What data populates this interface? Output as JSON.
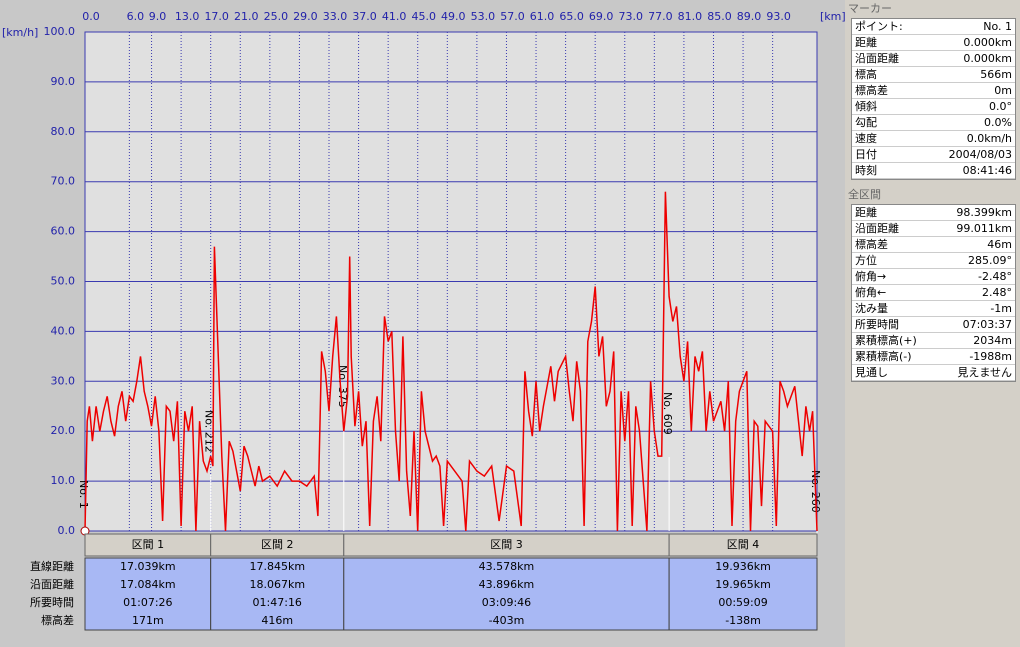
{
  "chart_data": {
    "type": "line",
    "y_unit": "[km/h]",
    "x_unit": "[km]",
    "color": "#ee0000",
    "grid": true,
    "xlim": [
      0,
      99
    ],
    "ylim": [
      0,
      100
    ],
    "xticks": [
      {
        "value": 0,
        "label": "0.0"
      },
      {
        "value": 6,
        "label": "6.0"
      },
      {
        "value": 9,
        "label": "9.0"
      },
      {
        "value": 13,
        "label": "13.0"
      },
      {
        "value": 17,
        "label": "17.0"
      },
      {
        "value": 21,
        "label": "21.0"
      },
      {
        "value": 25,
        "label": "25.0"
      },
      {
        "value": 29,
        "label": "29.0"
      },
      {
        "value": 33,
        "label": "33.0"
      },
      {
        "value": 37,
        "label": "37.0"
      },
      {
        "value": 41,
        "label": "41.0"
      },
      {
        "value": 45,
        "label": "45.0"
      },
      {
        "value": 49,
        "label": "49.0"
      },
      {
        "value": 53,
        "label": "53.0"
      },
      {
        "value": 57,
        "label": "57.0"
      },
      {
        "value": 61,
        "label": "61.0"
      },
      {
        "value": 65,
        "label": "65.0"
      },
      {
        "value": 69,
        "label": "69.0"
      },
      {
        "value": 73,
        "label": "73.0"
      },
      {
        "value": 77,
        "label": "77.0"
      },
      {
        "value": 81,
        "label": "81.0"
      },
      {
        "value": 85,
        "label": "85.0"
      },
      {
        "value": 89,
        "label": "89.0"
      },
      {
        "value": 93,
        "label": "93.0"
      }
    ],
    "yticks": [
      {
        "value": 0,
        "label": "0.0"
      },
      {
        "value": 10,
        "label": "10.0"
      },
      {
        "value": 20,
        "label": "20.0"
      },
      {
        "value": 30,
        "label": "30.0"
      },
      {
        "value": 40,
        "label": "40.0"
      },
      {
        "value": 50,
        "label": "50.0"
      },
      {
        "value": 60,
        "label": "60.0"
      },
      {
        "value": 70,
        "label": "70.0"
      },
      {
        "value": 80,
        "label": "80.0"
      },
      {
        "value": 90,
        "label": "90.0"
      },
      {
        "value": 100,
        "label": "100.0"
      }
    ],
    "x": [
      0,
      0.3,
      0.6,
      1,
      1.5,
      2,
      2.5,
      3,
      3.5,
      4,
      4.5,
      5,
      5.5,
      6,
      6.5,
      7,
      7.5,
      8,
      8.5,
      9,
      9.5,
      10,
      10.5,
      11,
      11.5,
      12,
      12.5,
      13,
      13.5,
      14,
      14.5,
      15,
      15.5,
      16,
      16.5,
      17,
      17.3,
      17.5,
      18,
      18.5,
      19,
      19.5,
      20,
      21,
      21.5,
      22,
      23,
      23.5,
      24,
      25,
      26,
      27,
      28,
      29,
      30,
      31,
      31.5,
      32,
      32.5,
      33,
      33.5,
      34,
      34.5,
      35,
      35.5,
      35.8,
      36,
      36.5,
      37,
      37.5,
      38,
      38.5,
      39,
      39.5,
      40,
      40.5,
      41,
      41.5,
      42,
      42.5,
      43,
      43.5,
      44,
      44.5,
      45,
      45.5,
      46,
      47,
      47.5,
      48,
      48.5,
      49,
      50,
      51,
      51.5,
      52,
      53,
      54,
      55,
      56,
      57,
      58,
      59,
      59.5,
      60,
      60.5,
      61,
      61.5,
      62,
      63,
      63.5,
      64,
      65,
      65.5,
      66,
      66.5,
      67,
      67.5,
      68,
      68.5,
      69,
      69.5,
      70,
      70.5,
      71,
      71.5,
      72,
      72.5,
      73,
      73.5,
      74,
      74.5,
      75,
      75.5,
      76,
      76.5,
      77,
      77.5,
      78,
      78.5,
      79,
      79.5,
      80,
      80.5,
      81,
      81.5,
      82,
      82.5,
      83,
      83.5,
      84,
      84.5,
      85,
      86,
      86.5,
      87,
      87.5,
      88,
      88.5,
      89,
      89.5,
      90,
      90.5,
      91,
      91.5,
      92,
      93,
      93.5,
      94,
      94.5,
      95,
      96,
      96.5,
      97,
      97.5,
      98,
      98.4,
      99
    ],
    "values": [
      0,
      22,
      25,
      18,
      25,
      20,
      24,
      27,
      22,
      19,
      25,
      28,
      22,
      27,
      26,
      30,
      35,
      28,
      25,
      21,
      27,
      20,
      2,
      25,
      24,
      18,
      26,
      1,
      24,
      20,
      25,
      0,
      22,
      14,
      12,
      15,
      13,
      57,
      36,
      15,
      0,
      18,
      16,
      8,
      17,
      15,
      9,
      13,
      10,
      11,
      9,
      12,
      10,
      10,
      9,
      11,
      3,
      36,
      32,
      24,
      35,
      43,
      30,
      20,
      27,
      55,
      35,
      21,
      28,
      17,
      22,
      1,
      22,
      27,
      18,
      43,
      38,
      40,
      20,
      10,
      39,
      12,
      3,
      20,
      0,
      28,
      20,
      14,
      15,
      13,
      1,
      14,
      12,
      10,
      0,
      14,
      12,
      11,
      13,
      2,
      13,
      12,
      1,
      32,
      24,
      19,
      30,
      20,
      25,
      33,
      26,
      32,
      35,
      28,
      22,
      34,
      28,
      1,
      38,
      42,
      49,
      35,
      39,
      25,
      28,
      36,
      0,
      28,
      18,
      28,
      1,
      25,
      20,
      10,
      0,
      30,
      20,
      15,
      15,
      68,
      47,
      42,
      45,
      35,
      30,
      38,
      20,
      35,
      32,
      36,
      20,
      28,
      22,
      26,
      20,
      30,
      1,
      22,
      28,
      30,
      32,
      0,
      22,
      21,
      5,
      22,
      20,
      1,
      30,
      28,
      25,
      29,
      22,
      15,
      25,
      20,
      24,
      0
    ],
    "markers": [
      {
        "label": "No. 1",
        "x": 0
      },
      {
        "label": "No. 212",
        "x": 17
      },
      {
        "label": "No. 375",
        "x": 35
      },
      {
        "label": "No. 609",
        "x": 79
      },
      {
        "label": "No. 260",
        "x": 99
      }
    ]
  },
  "sections": {
    "headers": [
      "区間 1",
      "区間 2",
      "区間 3",
      "区間 4"
    ],
    "row_labels": [
      "直線距離",
      "沿面距離",
      "所要時間",
      "標高差"
    ],
    "rows": [
      [
        "17.039km",
        "17.845km",
        "43.578km",
        "19.936km"
      ],
      [
        "17.084km",
        "18.067km",
        "43.896km",
        "19.965km"
      ],
      [
        "01:07:26",
        "01:47:16",
        "03:09:46",
        "00:59:09"
      ],
      [
        "171m",
        "416m",
        "-403m",
        "-138m"
      ]
    ]
  },
  "marker_panel": {
    "title": "マーカー",
    "rows": [
      [
        "ポイント:",
        "No. 1"
      ],
      [
        "距離",
        "0.000km"
      ],
      [
        "沿面距離",
        "0.000km"
      ],
      [
        "標高",
        "566m"
      ],
      [
        "標高差",
        "0m"
      ],
      [
        "傾斜",
        "0.0°"
      ],
      [
        "勾配",
        "0.0%"
      ],
      [
        "速度",
        "0.0km/h"
      ],
      [
        "日付",
        "2004/08/03"
      ],
      [
        "時刻",
        "08:41:46"
      ]
    ]
  },
  "total_panel": {
    "title": "全区間",
    "rows": [
      [
        "距離",
        "98.399km"
      ],
      [
        "沿面距離",
        "99.011km"
      ],
      [
        "標高差",
        "46m"
      ],
      [
        "方位",
        "285.09°"
      ],
      [
        "俯角→",
        "-2.48°"
      ],
      [
        "俯角←",
        "2.48°"
      ],
      [
        "沈み量",
        "-1m"
      ],
      [
        "所要時間",
        "07:03:37"
      ],
      [
        "累積標高(+)",
        "2034m"
      ],
      [
        "累積標高(-)",
        "-1988m"
      ],
      [
        "見通し",
        "見えません"
      ]
    ]
  }
}
